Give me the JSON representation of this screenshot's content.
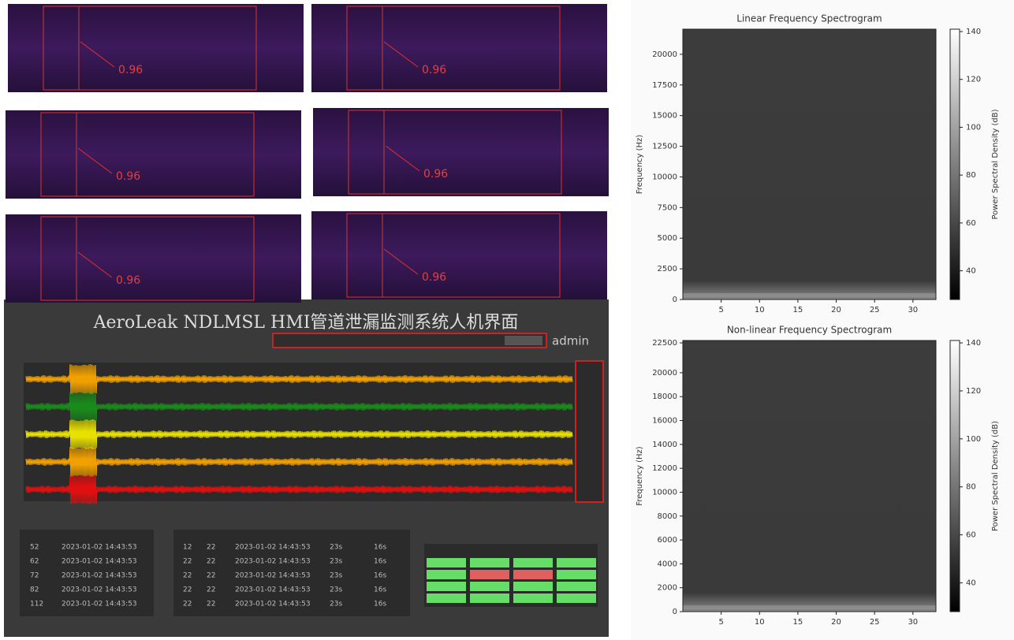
{
  "thumbnails": [
    {
      "score": "0.96"
    },
    {
      "score": "0.96"
    },
    {
      "score": "0.96"
    },
    {
      "score": "0.96"
    },
    {
      "score": "0.96"
    },
    {
      "score": "0.96"
    }
  ],
  "hmi": {
    "title": "AeroLeak NDLMSL HMI管道泄漏监测系统人机界面",
    "user": "admin",
    "left_table": [
      [
        "52",
        "2023-01-02 14:43:53"
      ],
      [
        "62",
        "2023-01-02 14:43:53"
      ],
      [
        "72",
        "2023-01-02 14:43:53"
      ],
      [
        "82",
        "2023-01-02 14:43:53"
      ],
      [
        "112",
        "2023-01-02 14:43:53"
      ]
    ],
    "middle_table": [
      [
        "12",
        "22",
        "2023-01-02 14:43:53",
        "23s",
        "16s"
      ],
      [
        "22",
        "22",
        "2023-01-02 14:43:53",
        "23s",
        "16s"
      ],
      [
        "22",
        "22",
        "2023-01-02 14:43:53",
        "23s",
        "16s"
      ],
      [
        "22",
        "22",
        "2023-01-02 14:43:53",
        "23s",
        "16s"
      ],
      [
        "22",
        "22",
        "2023-01-02 14:43:53",
        "23s",
        "16s"
      ]
    ]
  },
  "chart_data": [
    {
      "type": "spectrogram",
      "title": "Linear Frequency Spectrogram",
      "ylabel": "Frequency (Hz)",
      "colorbar_label": "Power Spectral Density (dB)",
      "xlim": [
        0,
        33
      ],
      "xticks": [
        5,
        10,
        15,
        20,
        25,
        30
      ],
      "ylim": [
        0,
        22050
      ],
      "yticks": [
        0,
        2500,
        5000,
        7500,
        10000,
        12500,
        15000,
        17500,
        20000
      ],
      "clim": [
        28,
        141
      ],
      "cticks": [
        40,
        60,
        80,
        100,
        120,
        140
      ]
    },
    {
      "type": "spectrogram",
      "title": "Non-linear Frequency Spectrogram",
      "ylabel": "Frequency (Hz)",
      "colorbar_label": "Power Spectral Density (dB)",
      "xlim": [
        0,
        33
      ],
      "xticks": [
        5,
        10,
        15,
        20,
        25,
        30
      ],
      "ylim": [
        0,
        22700
      ],
      "yticks": [
        0,
        2000,
        4000,
        6000,
        8000,
        10000,
        12000,
        14000,
        16000,
        18000,
        20000,
        22500
      ],
      "clim": [
        28,
        141
      ],
      "cticks": [
        40,
        60,
        80,
        100,
        120,
        140
      ]
    }
  ]
}
